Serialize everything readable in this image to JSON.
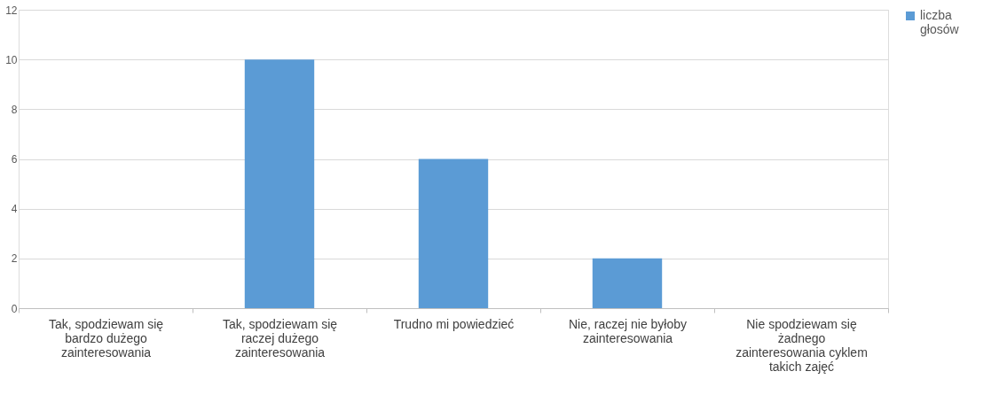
{
  "chart_data": {
    "type": "bar",
    "categories": [
      "Tak, spodziewam się bardzo dużego zainteresowania",
      "Tak, spodziewam się raczej dużego zainteresowania",
      "Trudno mi powiedzieć",
      "Nie, raczej nie byłoby zainteresowania",
      "Nie spodziewam się żadnego zainteresowania cyklem takich zajęć"
    ],
    "series": [
      {
        "name": "liczba głosów",
        "color": "#5b9bd5",
        "values": [
          0,
          10,
          6,
          2,
          0
        ]
      }
    ],
    "ylim": [
      0,
      12
    ],
    "yticks": [
      0,
      2,
      4,
      6,
      8,
      10,
      12
    ],
    "grid": "y",
    "legend": "right"
  }
}
